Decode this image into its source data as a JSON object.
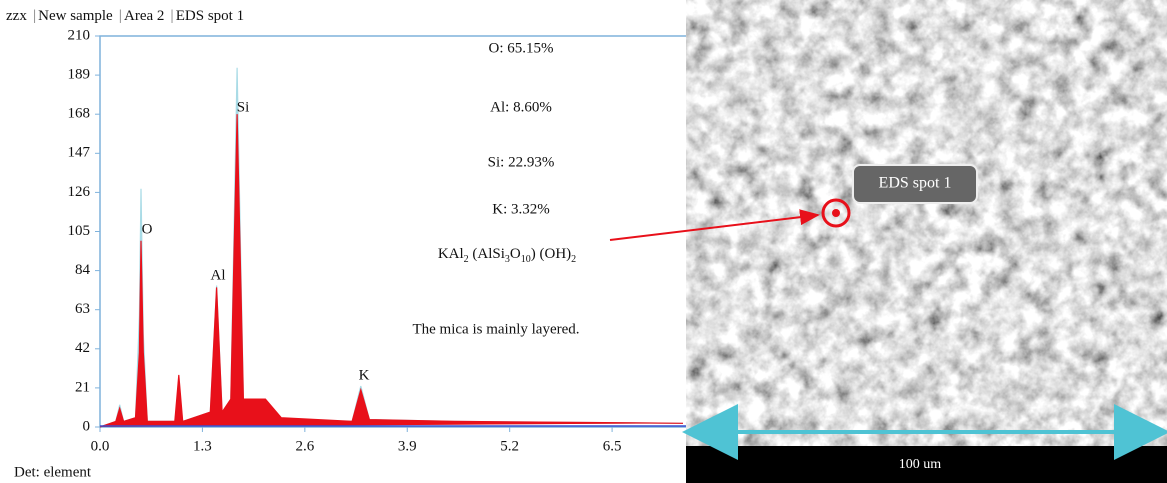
{
  "header": [
    "zzx",
    "New sample",
    "Area 2",
    "EDS spot 1"
  ],
  "footer": "Det: element",
  "chart_data": {
    "type": "area",
    "xlim": [
      0,
      7.4
    ],
    "xticks": [
      {
        "value": 0,
        "label": "0.0"
      },
      1.3,
      2.6,
      3.9,
      5.2,
      6.5
    ],
    "ylim": [
      0,
      210
    ],
    "yticks": [
      0,
      21,
      42,
      63,
      84,
      105,
      126,
      147,
      168,
      189,
      210
    ],
    "x": [
      0,
      0.2,
      0.25,
      0.3,
      0.45,
      0.5,
      0.52,
      0.55,
      0.6,
      0.95,
      1.0,
      1.05,
      1.4,
      1.48,
      1.55,
      1.66,
      1.74,
      1.82,
      2.1,
      2.3,
      3.2,
      3.31,
      3.42,
      4.5,
      7.4
    ],
    "series": [
      {
        "color": "#a9dbe6",
        "values": [
          0,
          3,
          12,
          3,
          5,
          60,
          128,
          50,
          3,
          3,
          20,
          3,
          8,
          76,
          8,
          15,
          193,
          15,
          10,
          4,
          3,
          22,
          4,
          3,
          2
        ]
      },
      {
        "color": "#e8101a",
        "values": [
          0,
          3,
          10,
          3,
          5,
          40,
          100,
          40,
          3,
          3,
          28,
          3,
          8,
          75,
          8,
          15,
          168,
          15,
          15,
          5,
          3,
          20,
          4,
          3,
          2
        ]
      }
    ],
    "annotations": [
      "O",
      "Al",
      "Si",
      "K"
    ],
    "composition": [
      "O: 65.15%",
      "Al: 8.60%",
      "Si: 22.93%",
      "K: 3.32%"
    ],
    "formula": [
      "KAl",
      "2",
      " (AlSi",
      "3",
      "O",
      "10",
      ") (OH)",
      "2"
    ],
    "note": "The mica is mainly layered."
  },
  "image": {
    "spot_label": "EDS spot 1",
    "scale_bar": "100 um"
  }
}
